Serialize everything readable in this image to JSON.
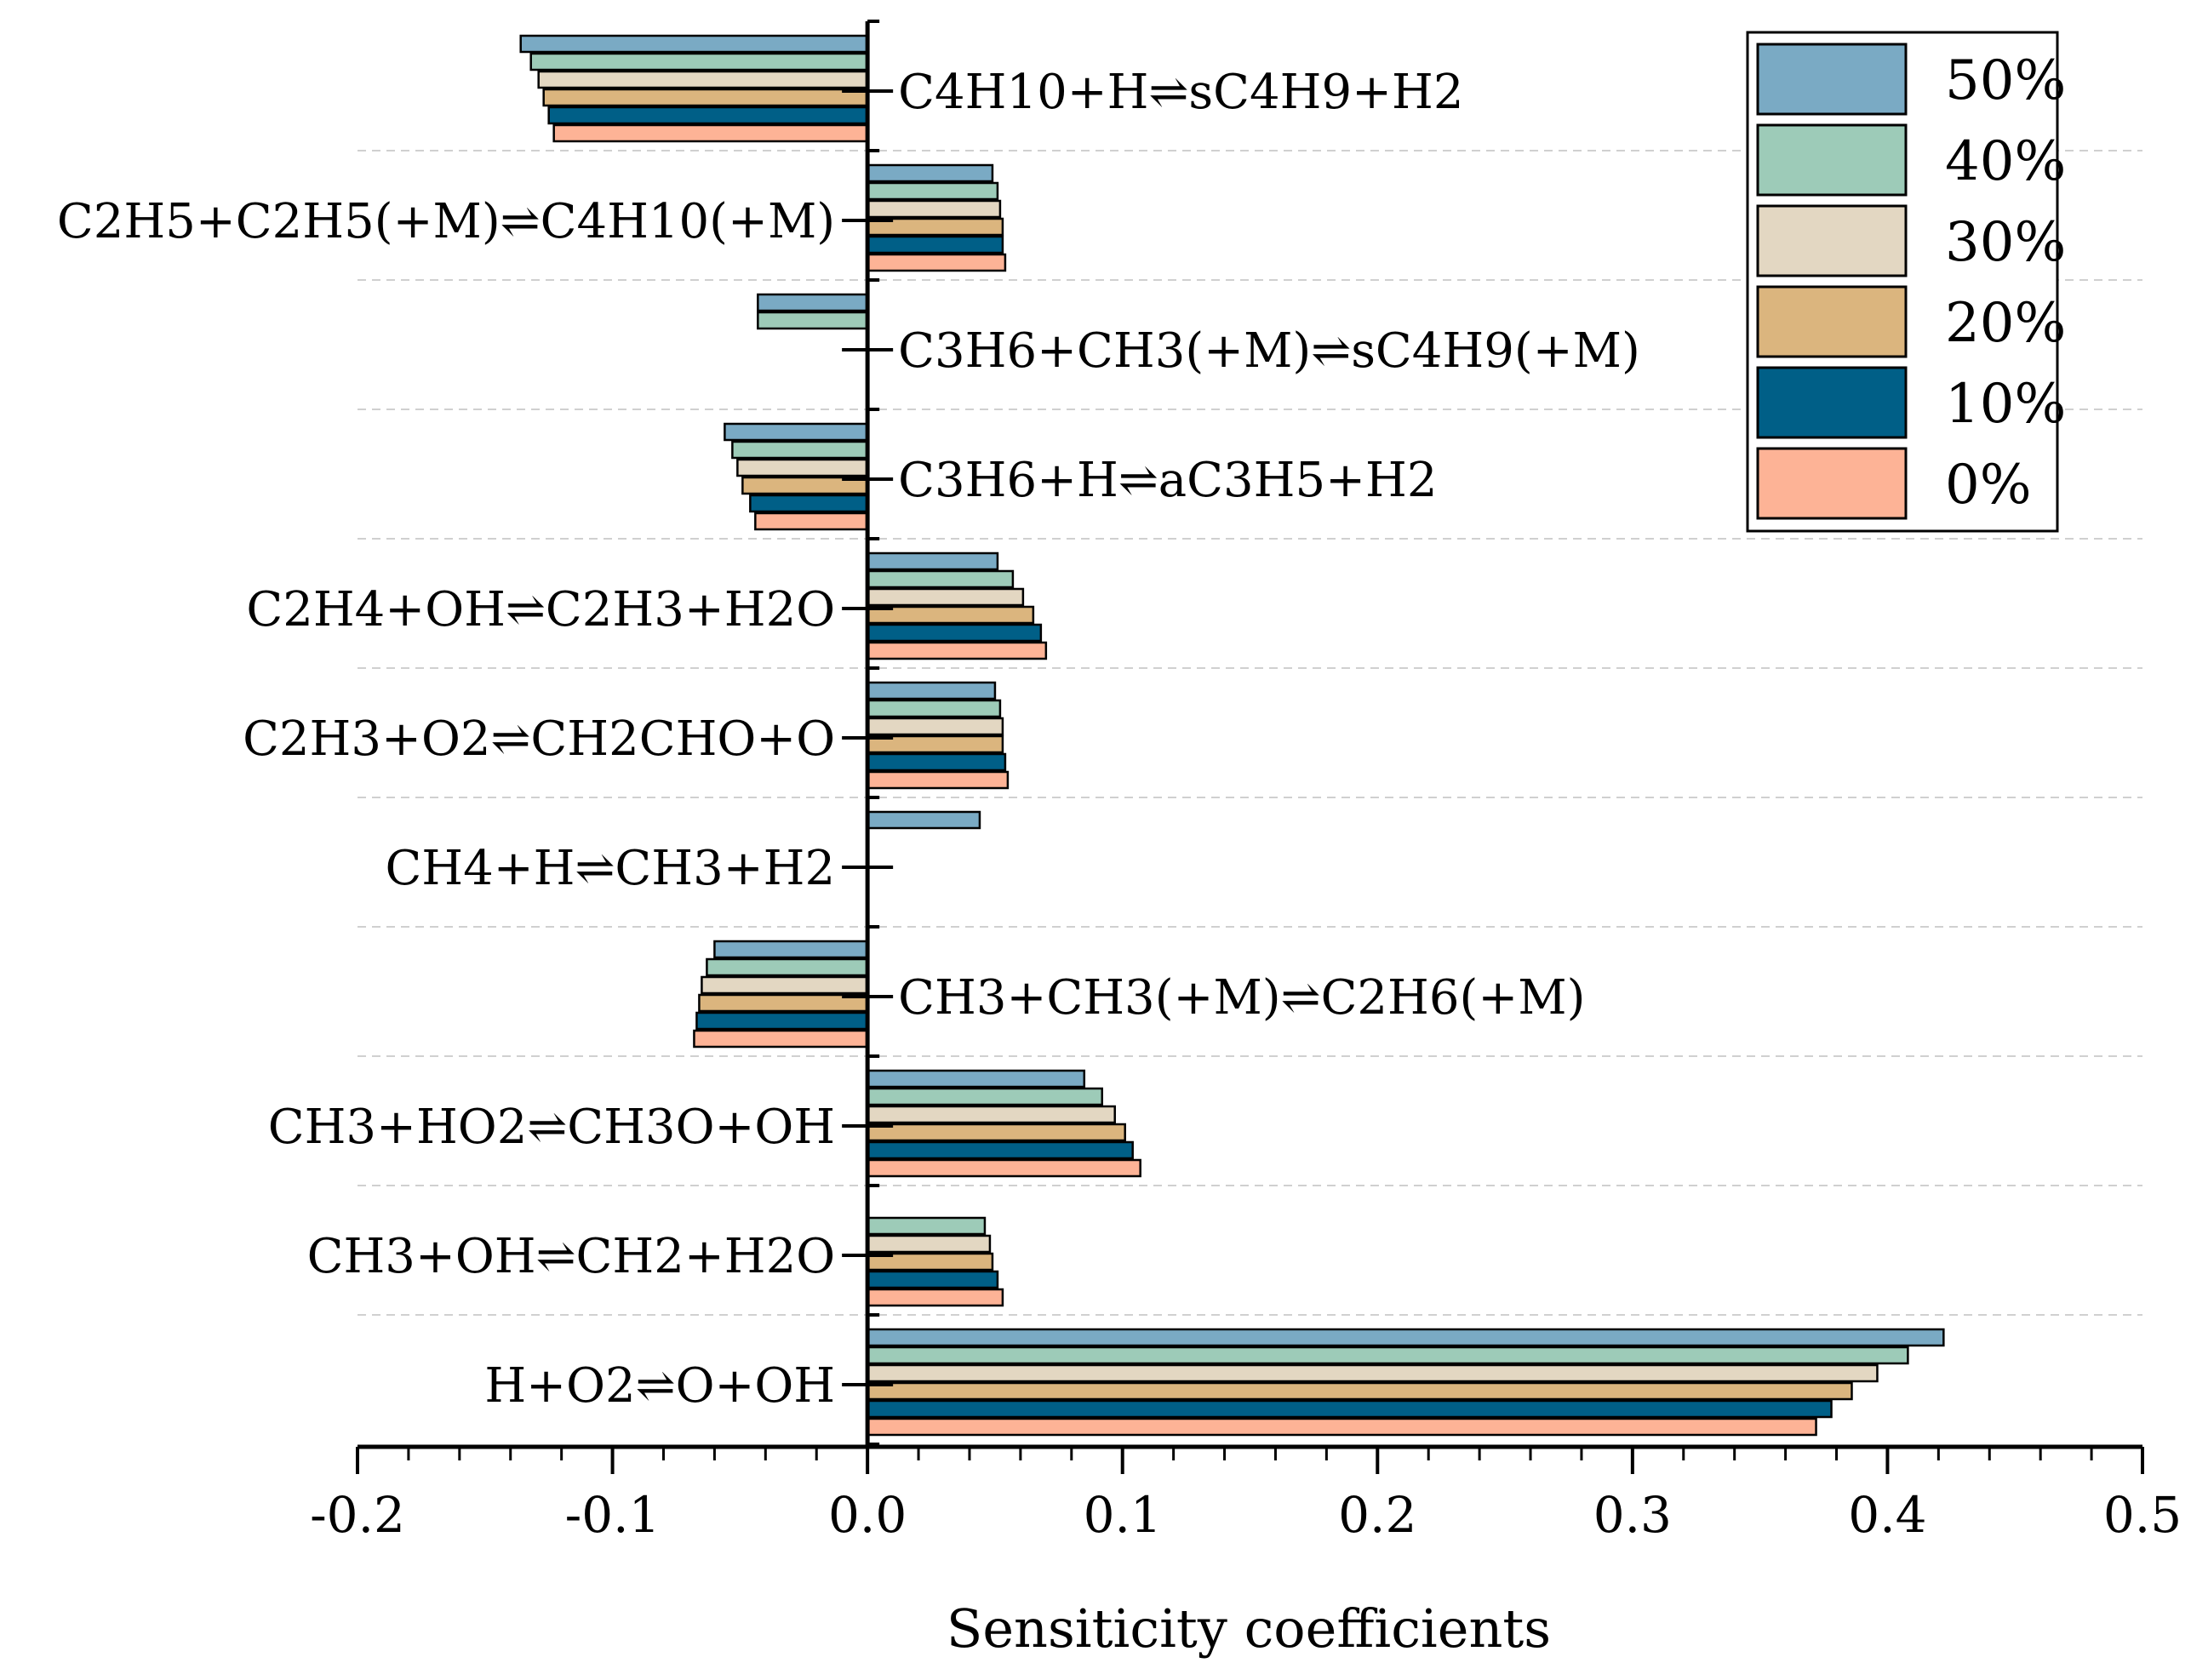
{
  "chart_data": {
    "type": "bar",
    "orientation": "horizontal",
    "title": "",
    "xlabel": "Sensiticity coefficients",
    "ylabel": "",
    "xlim": [
      -0.2,
      0.5
    ],
    "xticks": [
      "-0.2",
      "-0.1",
      "0.0",
      "0.1",
      "0.2",
      "0.3",
      "0.4",
      "0.5"
    ],
    "legend_position": "top-right",
    "categories": [
      "C4H10+H⇌sC4H9+H2",
      "C2H5+C2H5(+M)⇌C4H10(+M)",
      "C3H6+CH3(+M)⇌sC4H9(+M)",
      "C3H6+H⇌aC3H5+H2",
      "C2H4+OH⇌C2H3+H2O",
      "C2H3+O2⇌CH2CHO+O",
      "CH4+H⇌CH3+H2",
      "CH3+CH3(+M)⇌C2H6(+M)",
      "CH3+HO2⇌CH3O+OH",
      "CH3+OH⇌CH2+H2O",
      "H+O2⇌O+OH"
    ],
    "label_side": [
      "right",
      "left",
      "right",
      "right",
      "left",
      "left",
      "left",
      "right",
      "left",
      "left",
      "left"
    ],
    "series": [
      {
        "name": "50%",
        "color": "#7aaac4",
        "values": [
          -0.136,
          0.049,
          -0.043,
          -0.056,
          0.051,
          0.05,
          0.044,
          -0.06,
          0.085,
          0,
          0.422
        ]
      },
      {
        "name": "40%",
        "color": "#9dcbb8",
        "values": [
          -0.132,
          0.051,
          -0.043,
          -0.053,
          0.057,
          0.052,
          0,
          -0.063,
          0.092,
          0.046,
          0.408
        ]
      },
      {
        "name": "30%",
        "color": "#e3d7c2",
        "values": [
          -0.129,
          0.052,
          0,
          -0.051,
          0.061,
          0.053,
          0,
          -0.065,
          0.097,
          0.048,
          0.396
        ]
      },
      {
        "name": "20%",
        "color": "#dbb57e",
        "values": [
          -0.127,
          0.053,
          0,
          -0.049,
          0.065,
          0.053,
          0,
          -0.066,
          0.101,
          0.049,
          0.386
        ]
      },
      {
        "name": "10%",
        "color": "#005f87",
        "values": [
          -0.125,
          0.053,
          0,
          -0.046,
          0.068,
          0.054,
          0,
          -0.067,
          0.104,
          0.051,
          0.378
        ]
      },
      {
        "name": "0%",
        "color": "#fdb396",
        "values": [
          -0.123,
          0.054,
          0,
          -0.044,
          0.07,
          0.055,
          0,
          -0.068,
          0.107,
          0.053,
          0.372
        ]
      }
    ]
  }
}
